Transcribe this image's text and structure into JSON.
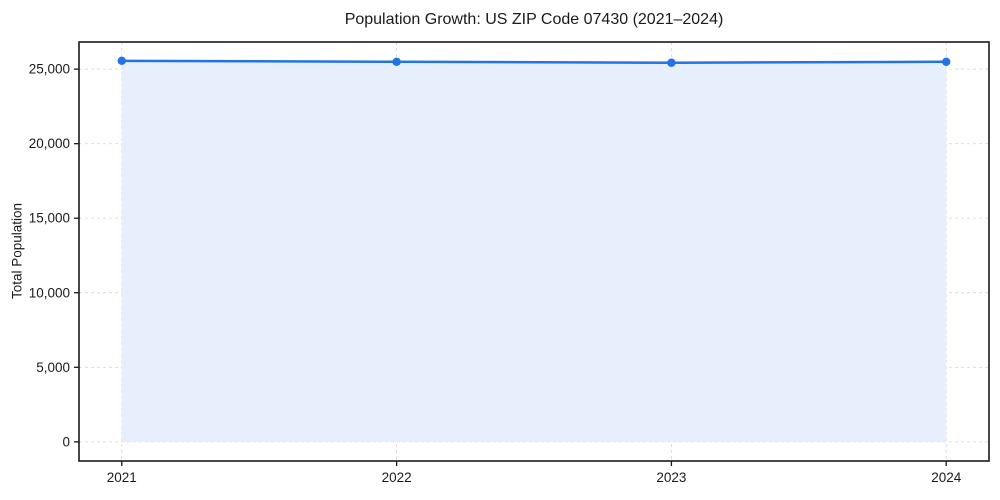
{
  "chart_data": {
    "type": "line",
    "title": "Population Growth: US ZIP Code 07430 (2021–2024)",
    "xlabel": "",
    "ylabel": "Total Population",
    "categories": [
      "2021",
      "2022",
      "2023",
      "2024"
    ],
    "values": [
      25560,
      25490,
      25430,
      25490
    ],
    "yticks": [
      0,
      5000,
      10000,
      15000,
      20000,
      25000
    ],
    "ytick_labels": [
      "0",
      "5,000",
      "10,000",
      "15,000",
      "20,000",
      "25,000"
    ],
    "ylim": [
      -1285,
      26820
    ],
    "x_margin_frac": 0.047,
    "grid": true,
    "legend": "none",
    "marker": "circle",
    "area_fill_to": 0,
    "colors": {
      "line": "#2273e6",
      "marker": "#2273e6",
      "area_fill": "#e7effc",
      "grid": "#d9d9d9",
      "spine": "#1a1a1a",
      "text": "#1a1a1a",
      "background": "#ffffff"
    }
  }
}
